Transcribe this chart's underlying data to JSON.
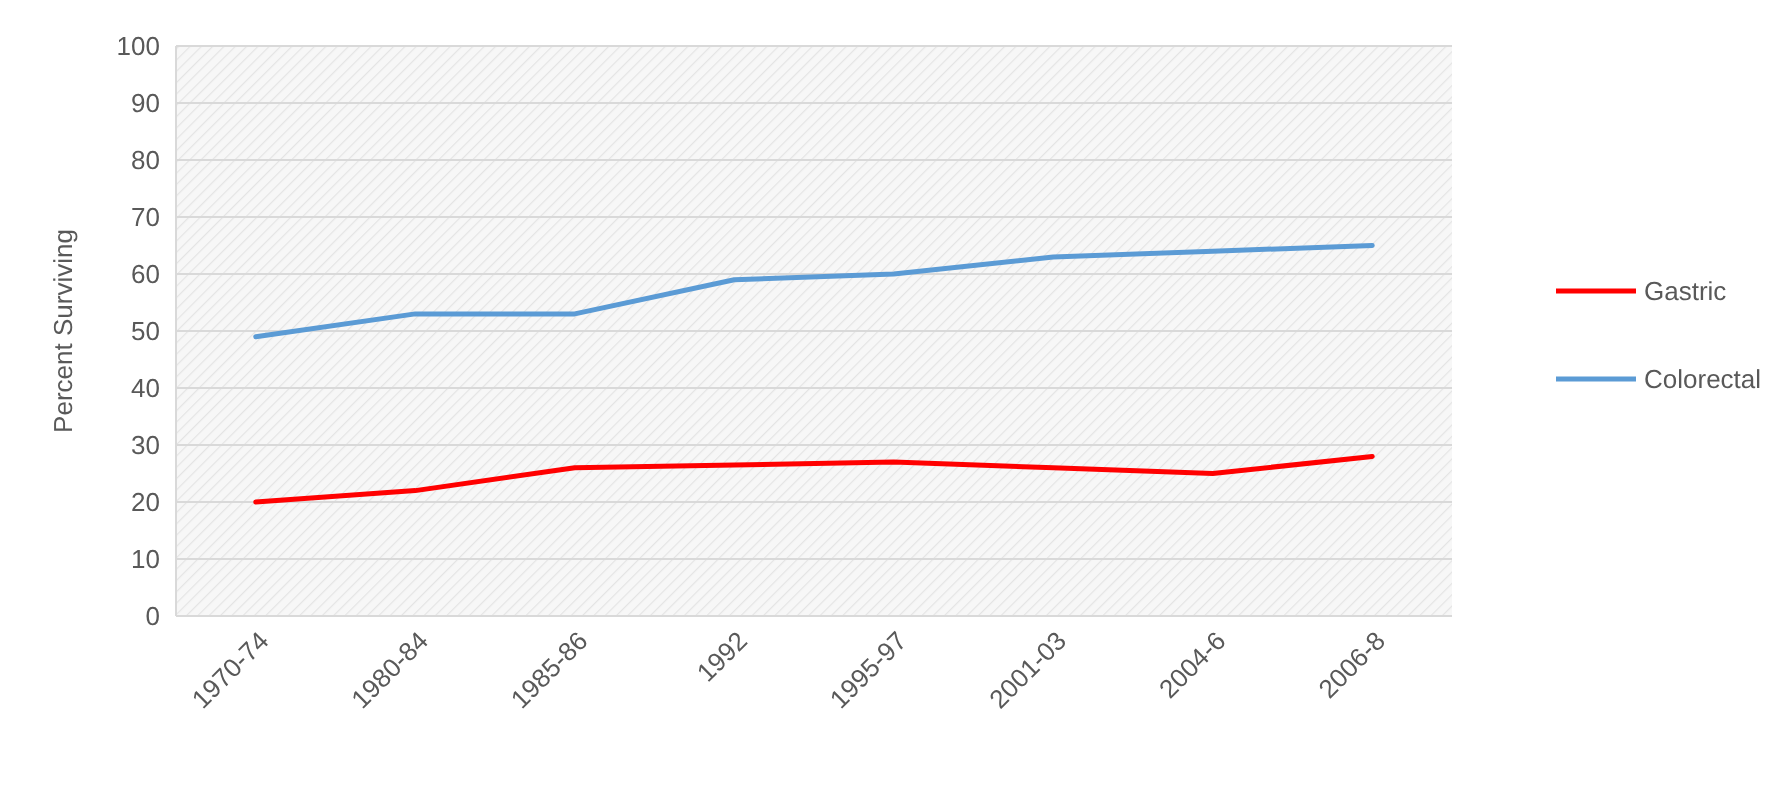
{
  "chart_data": {
    "type": "line",
    "ylabel": "Percent Surviving",
    "categories": [
      "1970-74",
      "1980-84",
      "1985-86",
      "1992",
      "1995-97",
      "2001-03",
      "2004-6",
      "2006-8"
    ],
    "series": [
      {
        "name": "Gastric",
        "color": "#ff0000",
        "values": [
          20,
          22,
          26,
          26.5,
          27,
          26,
          25,
          28
        ]
      },
      {
        "name": "Colorectal",
        "color": "#5b9bd5",
        "values": [
          49,
          53,
          53,
          59,
          60,
          63,
          64,
          65
        ]
      }
    ],
    "ylim": [
      0,
      100
    ],
    "yticks": [
      0,
      10,
      20,
      30,
      40,
      50,
      60,
      70,
      80,
      90,
      100
    ],
    "grid": "y",
    "legend": "right",
    "marker": "none",
    "line_style": "solid"
  }
}
